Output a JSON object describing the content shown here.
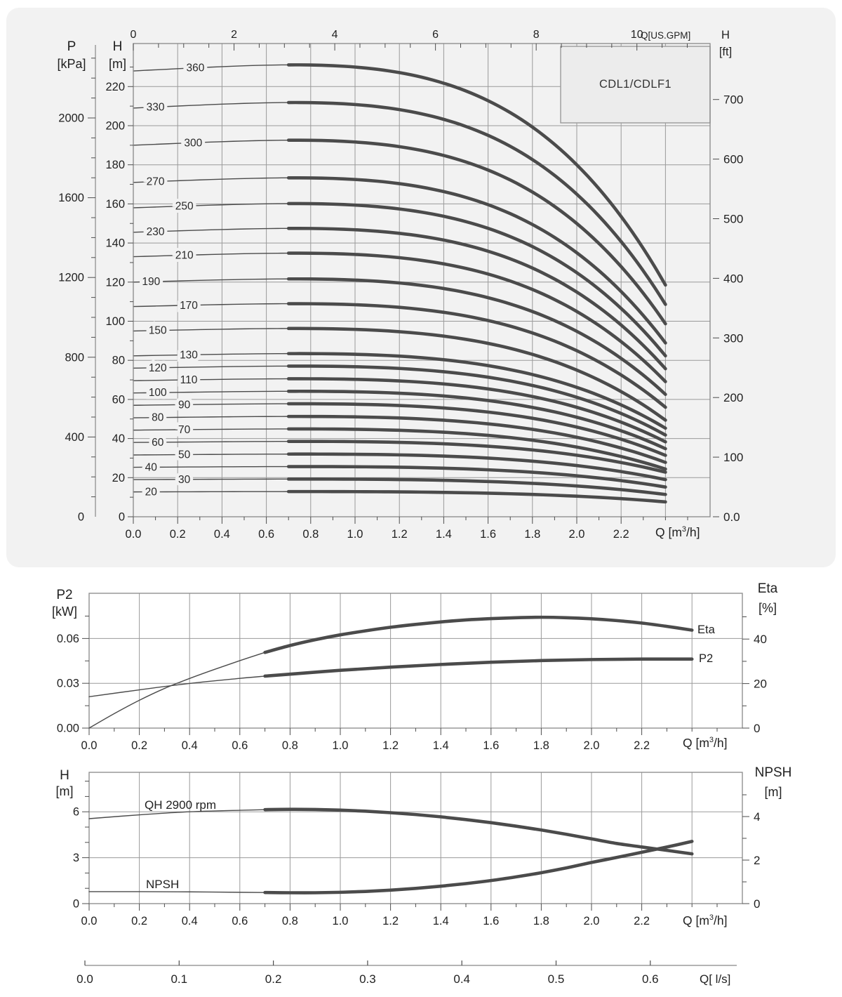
{
  "page": {
    "background": "#ffffff",
    "panel_bg": "#f2f2f2",
    "grid_color": "#9a9a9a",
    "border_color": "#888888",
    "curve_color": "#4b4b4b",
    "text_color": "#222222"
  },
  "chart_data": {
    "qh_chart": {
      "type": "line",
      "title": "CDL1/CDLF1",
      "p_title": "P",
      "p_unit": "[kPa]",
      "h_title": "H",
      "h_unit": "[m]",
      "ft_title": "H",
      "ft_unit": "[ft]",
      "gpm_label": "Q[US.GPM]",
      "x_label_pre": "Q [m",
      "x_label_sup": "3",
      "x_label_post": "/h]",
      "x_ticks": [
        "0.0",
        "0.2",
        "0.4",
        "0.6",
        "0.8",
        "1.0",
        "1.2",
        "1.4",
        "1.6",
        "1.8",
        "2.0",
        "2.2"
      ],
      "x_range_m3h": [
        0,
        2.6
      ],
      "gpm_ticks": [
        0,
        2,
        4,
        6,
        8,
        10
      ],
      "h_ticks": [
        0,
        20,
        40,
        60,
        80,
        100,
        120,
        140,
        160,
        180,
        200,
        220
      ],
      "h_range_m": [
        0,
        242
      ],
      "p_ticks": [
        0,
        400,
        800,
        1200,
        1600,
        2000
      ],
      "ft_ticks": [
        "0.0",
        "100",
        "200",
        "300",
        "400",
        "500",
        "600",
        "700"
      ],
      "duty_range_q_m3h": [
        0.7,
        2.4
      ],
      "curves": [
        {
          "label": "360",
          "shutoff_head_m": 228.0,
          "head_at_q_end_m": 118.5,
          "label_q": 0.28
        },
        {
          "label": "330",
          "shutoff_head_m": 209.0,
          "head_at_q_end_m": 108.6,
          "label_q": 0.1
        },
        {
          "label": "300",
          "shutoff_head_m": 190.0,
          "head_at_q_end_m": 98.7,
          "label_q": 0.27
        },
        {
          "label": "270",
          "shutoff_head_m": 171.0,
          "head_at_q_end_m": 88.9,
          "label_q": 0.1
        },
        {
          "label": "250",
          "shutoff_head_m": 158.0,
          "head_at_q_end_m": 82.3,
          "label_q": 0.23
        },
        {
          "label": "230",
          "shutoff_head_m": 145.5,
          "head_at_q_end_m": 75.7,
          "label_q": 0.1
        },
        {
          "label": "210",
          "shutoff_head_m": 133.0,
          "head_at_q_end_m": 69.1,
          "label_q": 0.23
        },
        {
          "label": "190",
          "shutoff_head_m": 120.0,
          "head_at_q_end_m": 62.6,
          "label_q": 0.08
        },
        {
          "label": "170",
          "shutoff_head_m": 107.5,
          "head_at_q_end_m": 56.0,
          "label_q": 0.25
        },
        {
          "label": "150",
          "shutoff_head_m": 95.0,
          "head_at_q_end_m": 49.4,
          "label_q": 0.11
        },
        {
          "label": "130",
          "shutoff_head_m": 82.3,
          "head_at_q_end_m": 45.3,
          "label_q": 0.25
        },
        {
          "label": "120",
          "shutoff_head_m": 76.0,
          "head_at_q_end_m": 41.8,
          "label_q": 0.11
        },
        {
          "label": "110",
          "shutoff_head_m": 69.6,
          "head_at_q_end_m": 38.3,
          "label_q": 0.25
        },
        {
          "label": "100",
          "shutoff_head_m": 63.3,
          "head_at_q_end_m": 34.8,
          "label_q": 0.11
        },
        {
          "label": "90",
          "shutoff_head_m": 57.0,
          "head_at_q_end_m": 31.4,
          "label_q": 0.23
        },
        {
          "label": "80",
          "shutoff_head_m": 50.6,
          "head_at_q_end_m": 27.8,
          "label_q": 0.11
        },
        {
          "label": "70",
          "shutoff_head_m": 44.3,
          "head_at_q_end_m": 24.4,
          "label_q": 0.23
        },
        {
          "label": "60",
          "shutoff_head_m": 38.0,
          "head_at_q_end_m": 22.8,
          "label_q": 0.11
        },
        {
          "label": "50",
          "shutoff_head_m": 31.6,
          "head_at_q_end_m": 19.0,
          "label_q": 0.23
        },
        {
          "label": "40",
          "shutoff_head_m": 25.3,
          "head_at_q_end_m": 15.2,
          "label_q": 0.08
        },
        {
          "label": "30",
          "shutoff_head_m": 19.0,
          "head_at_q_end_m": 11.4,
          "label_q": 0.23
        },
        {
          "label": "20",
          "shutoff_head_m": 12.7,
          "head_at_q_end_m": 7.6,
          "label_q": 0.08
        }
      ]
    },
    "power_eta_chart": {
      "type": "line",
      "p2_title": "P2",
      "p2_unit": "[kW]",
      "eta_title": "Eta",
      "eta_unit": "[%]",
      "x_label_pre": "Q [m",
      "x_label_sup": "3",
      "x_label_post": "/h]",
      "x_ticks": [
        "0.0",
        "0.2",
        "0.4",
        "0.6",
        "0.8",
        "1.0",
        "1.2",
        "1.4",
        "1.6",
        "1.8",
        "2.0",
        "2.2"
      ],
      "p2_ticks": [
        "0.00",
        "0.03",
        "0.06"
      ],
      "p2_range_kw": [
        0,
        0.09
      ],
      "eta_ticks": [
        0,
        20,
        40
      ],
      "eta_range_pct": [
        0,
        60
      ],
      "series": [
        {
          "name": "Eta",
          "axis": "eta",
          "label": "Eta",
          "thick_from_q": 0.7,
          "points": [
            [
              0,
              0
            ],
            [
              0.1,
              6.5
            ],
            [
              0.2,
              12.5
            ],
            [
              0.3,
              17.8
            ],
            [
              0.4,
              22.3
            ],
            [
              0.5,
              26.4
            ],
            [
              0.6,
              30.3
            ],
            [
              0.7,
              34.0
            ],
            [
              0.8,
              37.1
            ],
            [
              0.9,
              39.7
            ],
            [
              1.0,
              41.9
            ],
            [
              1.1,
              43.7
            ],
            [
              1.2,
              45.3
            ],
            [
              1.3,
              46.6
            ],
            [
              1.4,
              47.7
            ],
            [
              1.5,
              48.6
            ],
            [
              1.6,
              49.2
            ],
            [
              1.7,
              49.6
            ],
            [
              1.8,
              49.8
            ],
            [
              1.9,
              49.6
            ],
            [
              2.0,
              49.1
            ],
            [
              2.1,
              48.3
            ],
            [
              2.2,
              47.2
            ],
            [
              2.3,
              45.7
            ],
            [
              2.4,
              44.0
            ]
          ]
        },
        {
          "name": "P2",
          "axis": "p2",
          "label": "P2",
          "thick_from_q": 0.7,
          "points": [
            [
              0,
              0.021
            ],
            [
              0.2,
              0.0256
            ],
            [
              0.4,
              0.0299
            ],
            [
              0.6,
              0.0333
            ],
            [
              0.7,
              0.0348
            ],
            [
              0.8,
              0.0361
            ],
            [
              1.0,
              0.0387
            ],
            [
              1.2,
              0.0408
            ],
            [
              1.4,
              0.0426
            ],
            [
              1.6,
              0.0441
            ],
            [
              1.8,
              0.0452
            ],
            [
              2.0,
              0.0459
            ],
            [
              2.2,
              0.0462
            ],
            [
              2.4,
              0.0462
            ]
          ]
        }
      ]
    },
    "qh_npsh_chart": {
      "type": "line",
      "h_title": "H",
      "h_unit": "[m]",
      "npsh_title": "NPSH",
      "npsh_unit": "[m]",
      "x_label_pre": "Q [m",
      "x_label_sup": "3",
      "x_label_post": "/h]",
      "x_ticks": [
        "0.0",
        "0.2",
        "0.4",
        "0.6",
        "0.8",
        "1.0",
        "1.2",
        "1.4",
        "1.6",
        "1.8",
        "2.0",
        "2.2"
      ],
      "h_ticks": [
        0,
        3,
        6
      ],
      "h_range_m": [
        0,
        8.6
      ],
      "npsh_ticks": [
        0,
        2,
        4
      ],
      "npsh_range_m": [
        0,
        6
      ],
      "series": [
        {
          "name": "QH 2900 rpm",
          "axis": "h",
          "label": "QH 2900 rpm",
          "thick_from_q": 0.7,
          "points": [
            [
              0,
              5.55
            ],
            [
              0.2,
              5.8
            ],
            [
              0.4,
              6.0
            ],
            [
              0.6,
              6.1
            ],
            [
              0.7,
              6.14
            ],
            [
              0.8,
              6.16
            ],
            [
              0.9,
              6.15
            ],
            [
              1.0,
              6.11
            ],
            [
              1.1,
              6.04
            ],
            [
              1.2,
              5.94
            ],
            [
              1.3,
              5.82
            ],
            [
              1.4,
              5.67
            ],
            [
              1.5,
              5.49
            ],
            [
              1.6,
              5.29
            ],
            [
              1.7,
              5.06
            ],
            [
              1.8,
              4.81
            ],
            [
              1.9,
              4.53
            ],
            [
              2.0,
              4.23
            ],
            [
              2.1,
              3.93
            ],
            [
              2.2,
              3.7
            ],
            [
              2.3,
              3.48
            ],
            [
              2.4,
              3.25
            ]
          ]
        },
        {
          "name": "NPSH",
          "axis": "npsh",
          "label": "NPSH",
          "thick_from_q": 0.7,
          "points": [
            [
              0,
              0.55
            ],
            [
              0.2,
              0.55
            ],
            [
              0.4,
              0.54
            ],
            [
              0.6,
              0.52
            ],
            [
              0.7,
              0.51
            ],
            [
              0.8,
              0.5
            ],
            [
              0.9,
              0.5
            ],
            [
              1.0,
              0.52
            ],
            [
              1.1,
              0.56
            ],
            [
              1.2,
              0.62
            ],
            [
              1.3,
              0.7
            ],
            [
              1.4,
              0.8
            ],
            [
              1.5,
              0.92
            ],
            [
              1.6,
              1.06
            ],
            [
              1.7,
              1.23
            ],
            [
              1.8,
              1.42
            ],
            [
              1.9,
              1.64
            ],
            [
              2.0,
              1.89
            ],
            [
              2.1,
              2.12
            ],
            [
              2.2,
              2.36
            ],
            [
              2.3,
              2.6
            ],
            [
              2.4,
              2.86
            ]
          ]
        }
      ]
    },
    "ls_axis": {
      "type": "axis",
      "ticks": [
        "0.0",
        "0.1",
        "0.2",
        "0.3",
        "0.4",
        "0.5",
        "0.6"
      ],
      "label": "Q[ l/s]"
    }
  }
}
